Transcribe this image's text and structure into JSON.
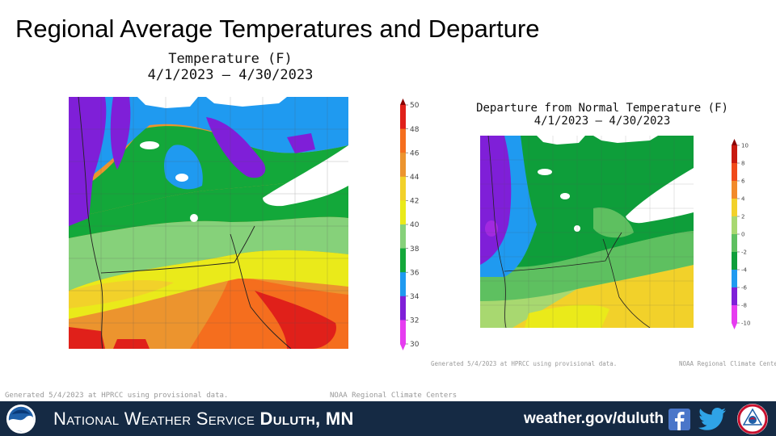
{
  "page": {
    "title": "Regional Average Temperatures and Departure"
  },
  "left_map": {
    "title_line1": "Temperature (F)",
    "title_line2": "4/1/2023 – 4/30/2023",
    "legend_ticks": [
      "50",
      "48",
      "46",
      "44",
      "42",
      "40",
      "38",
      "36",
      "34",
      "32",
      "30"
    ],
    "legend_colors": [
      "#8b0000",
      "#e0201a",
      "#f56e1e",
      "#ec942e",
      "#f2d12a",
      "#eaea1a",
      "#86d17a",
      "#13a83a",
      "#1f9af0",
      "#7f1fd8",
      "#e63cf0"
    ],
    "generated_note": "Generated 5/4/2023 at HPRCC using provisional data.",
    "credit": "NOAA Regional Climate Centers"
  },
  "right_map": {
    "title_line1": "Departure from Normal Temperature (F)",
    "title_line2": "4/1/2023 – 4/30/2023",
    "legend_ticks": [
      "10",
      "8",
      "6",
      "4",
      "2",
      "0",
      "-2",
      "-4",
      "-6",
      "-8",
      "-10"
    ],
    "legend_colors": [
      "#8b0000",
      "#c81a10",
      "#f04a1a",
      "#f28a2a",
      "#f2d12a",
      "#a8d870",
      "#5ec060",
      "#0e9e3a",
      "#1f9af0",
      "#7f1fd8",
      "#e63cf0"
    ],
    "generated_note": "Generated 5/4/2023 at HPRCC using provisional data.",
    "credit": "NOAA Regional Climate Centers"
  },
  "footer": {
    "office_prefix": "National Weather Service",
    "office_location": "Duluth, MN",
    "website": "weather.gov/duluth",
    "background_color": "#152a44"
  },
  "icons": [
    "noaa-logo",
    "facebook-icon",
    "twitter-icon",
    "nws-logo"
  ]
}
